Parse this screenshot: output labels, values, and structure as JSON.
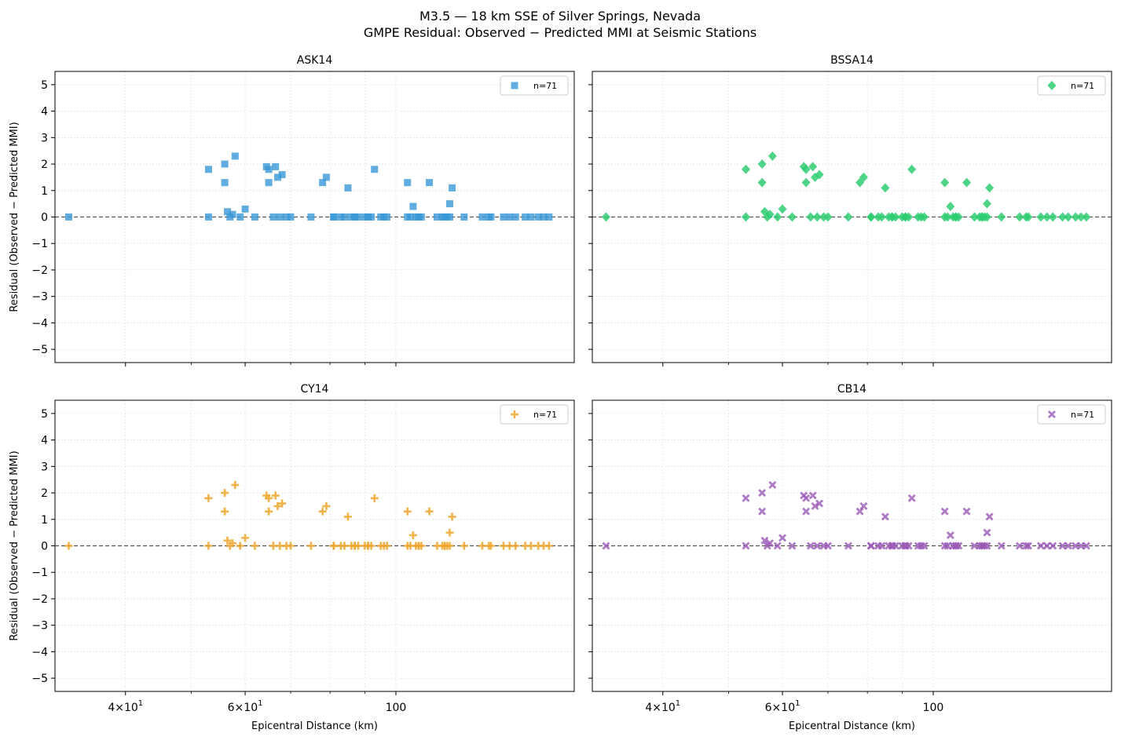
{
  "chart_data": {
    "type": "scatter",
    "title": "M3.5 — 18 km SSE of Silver Springs, Nevada",
    "subtitle": "GMPE Residual: Observed − Predicted MMI at Seismic Stations",
    "xlabel": "Epicentral Distance (km)",
    "ylabel": "Residual (Observed − Predicted MMI)",
    "xscale": "log",
    "xlim": [
      31.5,
      183
    ],
    "ylim": [
      -5.5,
      5.5
    ],
    "yticks": [
      5,
      4,
      3,
      2,
      1,
      0,
      -1,
      -2,
      -3,
      -4,
      -5
    ],
    "ytick_labels": [
      "5",
      "4",
      "3",
      "2",
      "1",
      "0",
      "−1",
      "−2",
      "−3",
      "−4",
      "−5"
    ],
    "xticks": [
      {
        "value": 40,
        "base": "4",
        "times": "×",
        "ten": "10",
        "exp": "1"
      },
      {
        "value": 60,
        "base": "6",
        "times": "×",
        "ten": "10",
        "exp": "1"
      },
      {
        "value": 100,
        "plain": "100"
      }
    ],
    "x_minor_ticks": [
      50,
      70,
      80,
      90
    ],
    "grid": true,
    "legend_position": "top-right",
    "x": [
      33,
      53,
      53,
      56,
      56,
      56.5,
      57,
      57.5,
      58,
      59,
      60,
      62,
      64.5,
      65,
      65,
      66,
      66.5,
      67,
      67.5,
      68,
      69,
      70,
      75,
      78,
      79,
      81,
      81,
      83,
      84,
      85,
      86,
      87,
      87,
      88,
      90,
      91,
      91,
      92,
      93,
      95,
      96,
      97,
      104,
      104,
      105,
      106,
      107,
      108,
      108,
      109,
      112,
      115,
      117,
      118,
      118,
      119,
      120,
      120,
      121,
      126,
      134,
      137,
      138,
      144,
      147,
      150,
      155,
      158,
      162,
      165,
      168
    ],
    "y": [
      0,
      1.8,
      0,
      2,
      1.3,
      0.2,
      0,
      0.1,
      2.3,
      0,
      0.3,
      0,
      1.9,
      1.8,
      1.3,
      0,
      1.9,
      1.5,
      0,
      1.6,
      0,
      0,
      0,
      1.3,
      1.5,
      0,
      0,
      0,
      0,
      1.1,
      0,
      0,
      0,
      0,
      0,
      0,
      0,
      0,
      1.8,
      0,
      0,
      0,
      0,
      1.3,
      0,
      0.4,
      0,
      0,
      0,
      0,
      1.3,
      0,
      0,
      0,
      0,
      0,
      0,
      0.5,
      1.1,
      0,
      0,
      0,
      0,
      0,
      0,
      0,
      0,
      0,
      0,
      0,
      0
    ],
    "panels": [
      {
        "name": "ASK14",
        "legend": "n=71",
        "color": "#3a98d8",
        "marker": "square"
      },
      {
        "name": "BSSA14",
        "legend": "n=71",
        "color": "#2ecc71",
        "marker": "diamond"
      },
      {
        "name": "CY14",
        "legend": "n=71",
        "color": "#f0a52a",
        "marker": "plus"
      },
      {
        "name": "CB14",
        "legend": "n=71",
        "color": "#9b59b6",
        "marker": "x"
      }
    ]
  }
}
